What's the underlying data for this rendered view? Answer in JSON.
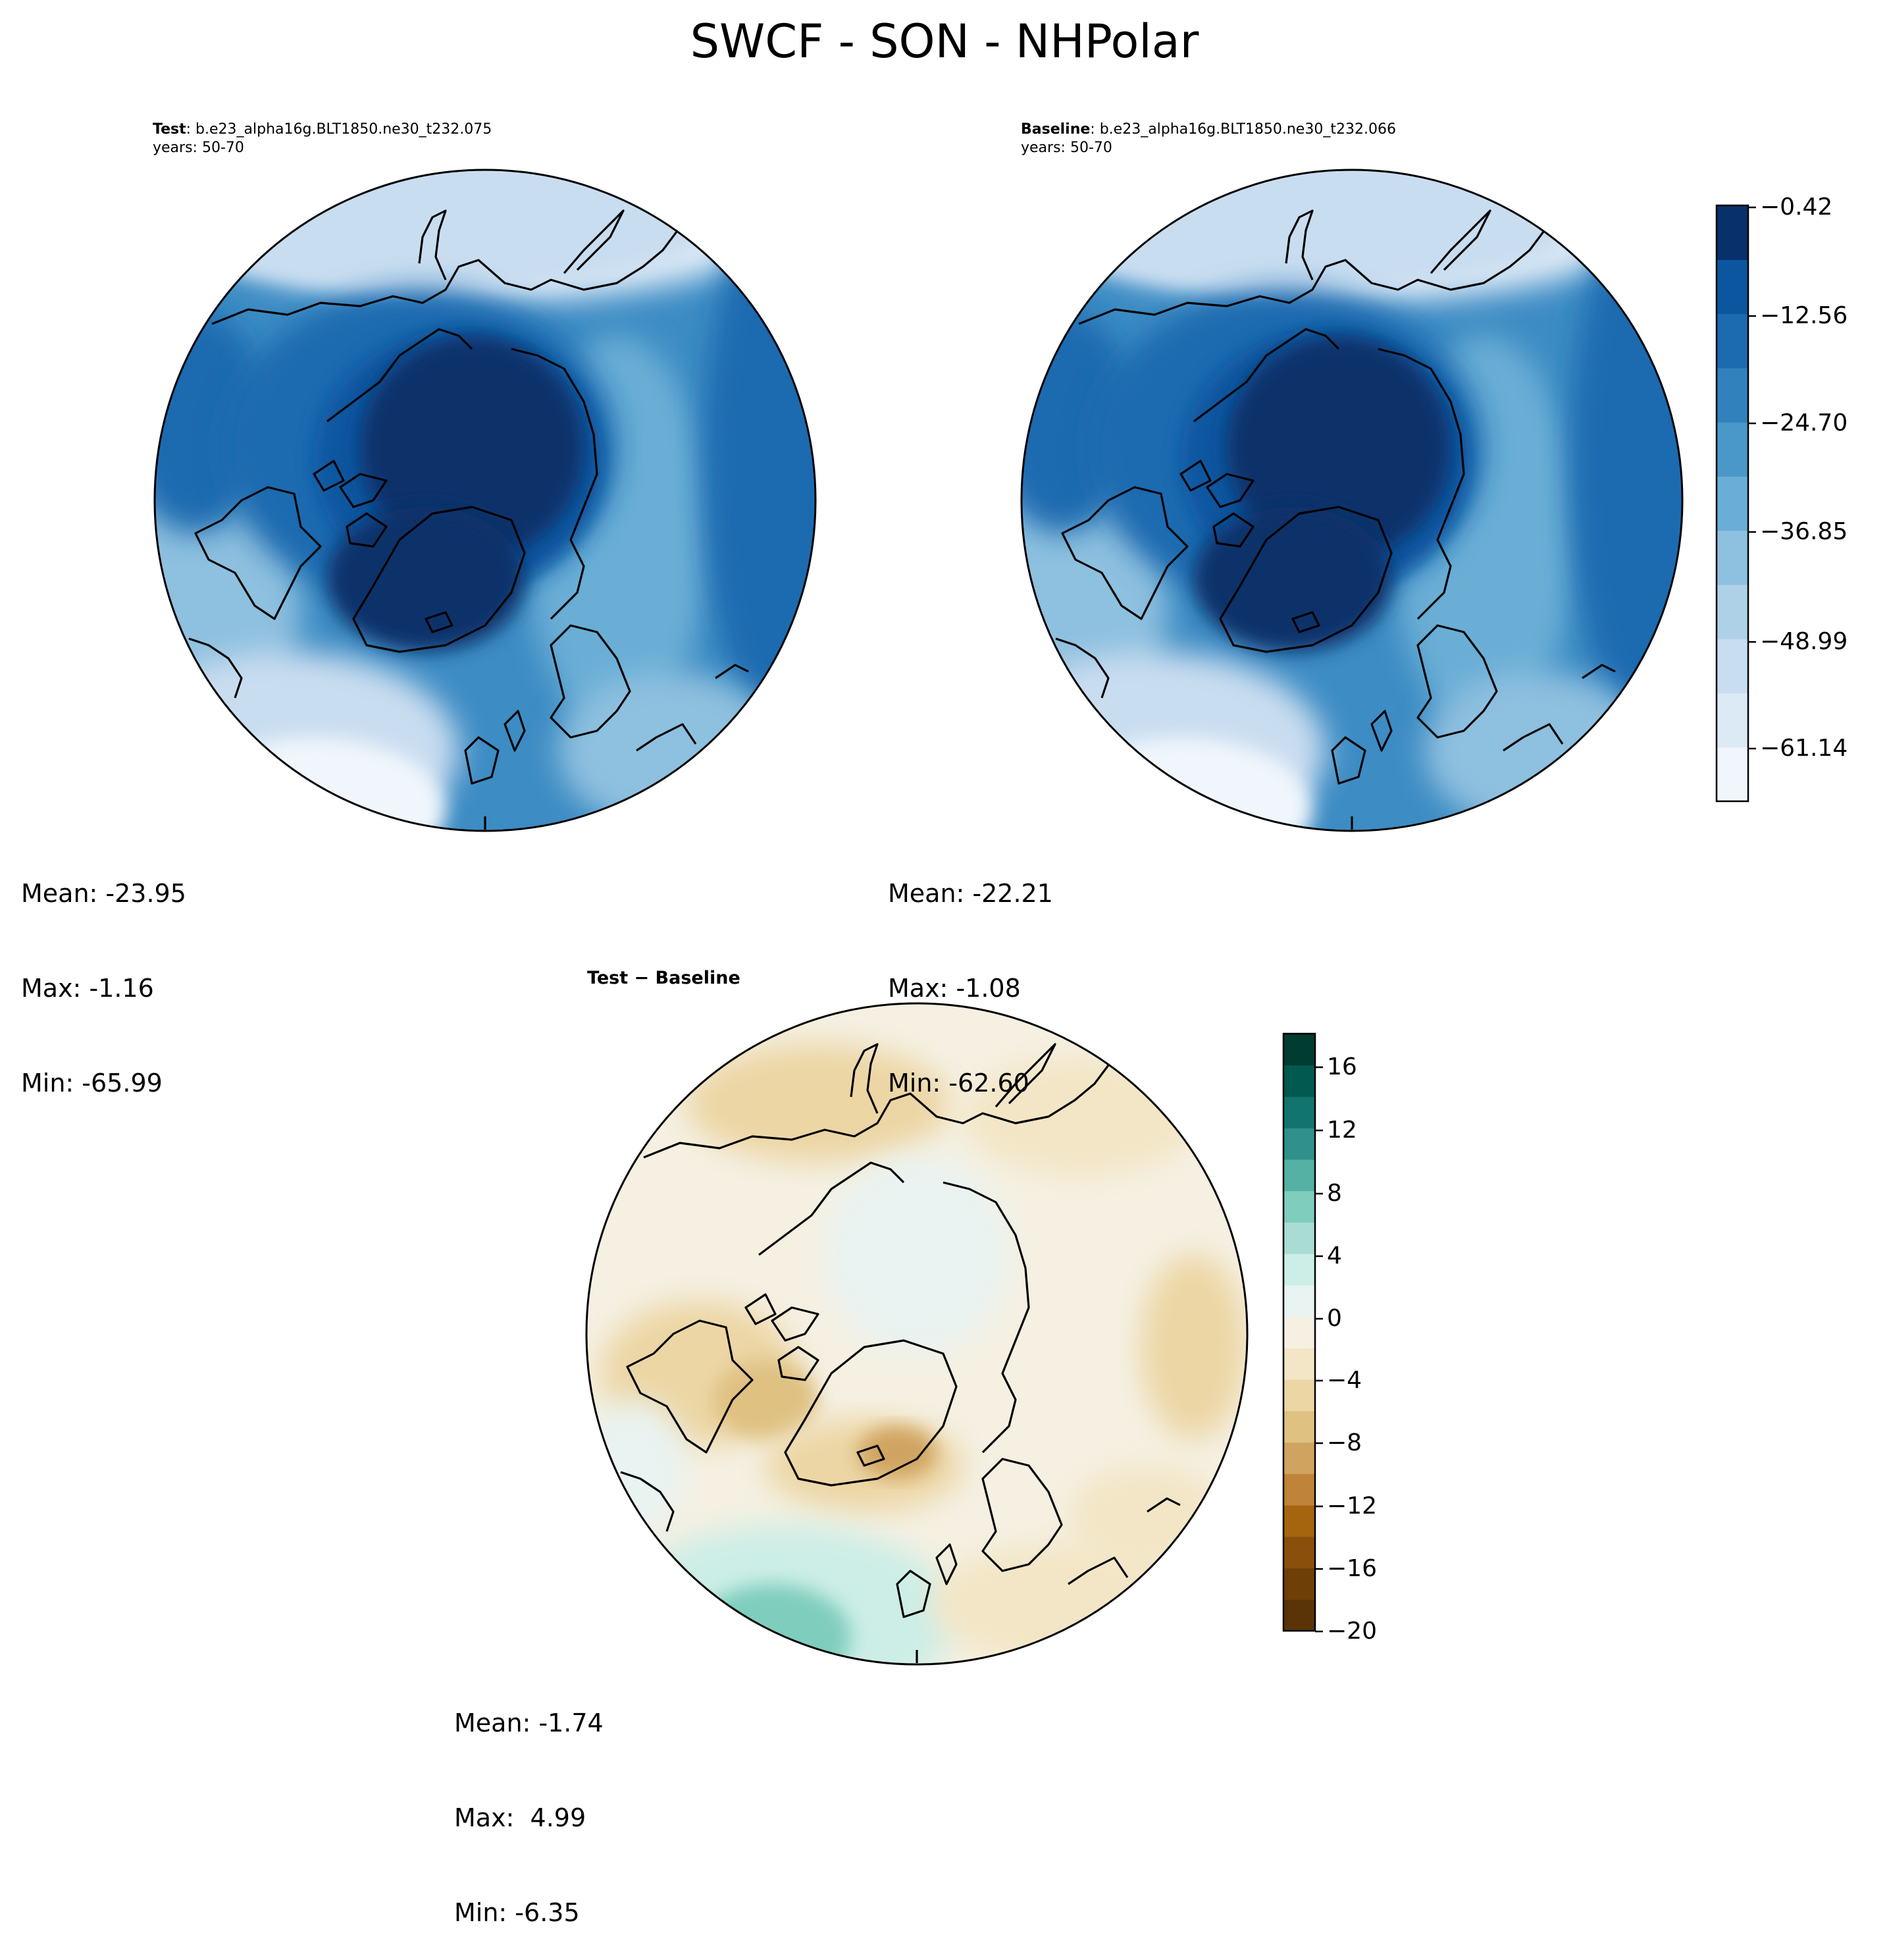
{
  "title": "SWCF - SON - NHPolar",
  "panels": {
    "test": {
      "label_bold": "Test",
      "label_rest": ": b.e23_alpha16g.BLT1850.ne30_t232.075",
      "years": "years: 50-70",
      "mean": "Mean: -23.95",
      "max": "Max: -1.16",
      "min": "Min: -65.99"
    },
    "baseline": {
      "label_bold": "Baseline",
      "label_rest": ": b.e23_alpha16g.BLT1850.ne30_t232.066",
      "years": "years: 50-70",
      "mean": "Mean: -22.21",
      "max": "Max: -1.08",
      "min": "Min: -62.60"
    },
    "diff": {
      "label": "Test − Baseline",
      "mean": "Mean: -1.74",
      "max": "Max:  4.99",
      "min": "Min: -6.35"
    }
  },
  "colorbar_main": {
    "ticks": [
      "−0.42",
      "−12.56",
      "−24.70",
      "−36.85",
      "−48.99",
      "−61.14"
    ],
    "colors": [
      "#f0f6fc",
      "#dceaf6",
      "#c9ddf0",
      "#afd1e7",
      "#8ec0df",
      "#6aaed6",
      "#4a97c9",
      "#3181bd",
      "#1c6bb0",
      "#0c56a0",
      "#08306b"
    ]
  },
  "colorbar_diff": {
    "ticks": [
      "16",
      "12",
      "8",
      "4",
      "0",
      "−4",
      "−8",
      "−12",
      "−16",
      "−20"
    ],
    "colors": [
      "#5a3306",
      "#6f3f08",
      "#8a500b",
      "#a5650f",
      "#bf8339",
      "#d0a460",
      "#dfc182",
      "#ecd6a4",
      "#f3e6c6",
      "#f5f0e2",
      "#e9f3f1",
      "#cceee7",
      "#a9ddd3",
      "#7fcdbd",
      "#56b1a5",
      "#2f9189",
      "#11756d",
      "#02594f",
      "#003c30"
    ]
  }
}
